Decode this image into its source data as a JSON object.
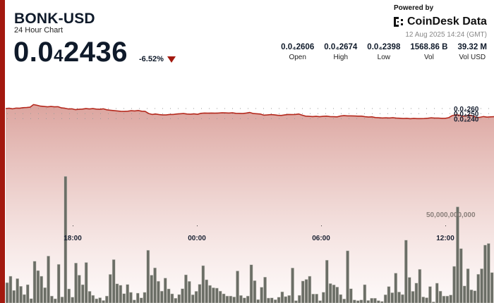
{
  "header": {
    "symbol": "BONK-USD",
    "subtitle": "24 Hour Chart",
    "price_prefix": "0.0",
    "price_sub": "4",
    "price_rest": "2436",
    "change": "-6.52%",
    "change_direction": "down",
    "colors": {
      "accent": "#a3190f",
      "volume": "#6b6e66",
      "line": "#b52a1e"
    }
  },
  "branding": {
    "powered_by": "Powered by",
    "name": "CoinDesk Data",
    "timestamp": "12 Aug 2025 14:24 (GMT)"
  },
  "stats": [
    {
      "value": "0.0₄2606",
      "label": "Open"
    },
    {
      "value": "0.0₄2674",
      "label": "High"
    },
    {
      "value": "0.0₄2398",
      "label": "Low"
    },
    {
      "value": "1568.86 B",
      "label": "Vol"
    },
    {
      "value": "39.32 M",
      "label": "Vol USD"
    }
  ],
  "chart_data": {
    "type": "line",
    "price_axis": {
      "ticks": [
        {
          "value": 2.4e-05,
          "label": "0.0₄240"
        },
        {
          "value": 2.5e-05,
          "label": "0.0₄250"
        },
        {
          "value": 2.6e-05,
          "label": "0.0₄260"
        }
      ],
      "grid": true
    },
    "volume_axis": {
      "ticks": [
        {
          "value": 50000000000,
          "label": "50,000,000,000"
        }
      ]
    },
    "x_ticks": [
      "18:00",
      "00:00",
      "06:00",
      "12:00"
    ],
    "price": [
      2.5986e-05,
      2.6056e-05,
      2.5944e-05,
      2.6083e-05,
      2.6056e-05,
      2.6167e-05,
      2.6194e-05,
      2.6264e-05,
      2.6778e-05,
      2.6639e-05,
      2.6472e-05,
      2.6403e-05,
      2.6333e-05,
      2.6403e-05,
      2.6333e-05,
      2.6361e-05,
      2.6125e-05,
      2.6056e-05,
      2.5917e-05,
      2.5944e-05,
      2.5778e-05,
      2.5847e-05,
      2.5889e-05,
      2.5986e-05,
      2.5917e-05,
      2.5986e-05,
      2.5889e-05,
      2.5847e-05,
      2.5944e-05,
      2.575e-05,
      2.5667e-05,
      2.5597e-05,
      2.5528e-05,
      2.5458e-05,
      2.5431e-05,
      2.5472e-05,
      2.5569e-05,
      2.5528e-05,
      2.5611e-05,
      2.5472e-05,
      2.5431e-05,
      2.5014e-05,
      2.4833e-05,
      2.4917e-05,
      2.4806e-05,
      2.4736e-05,
      2.4736e-05,
      2.4833e-05,
      2.4833e-05,
      2.4917e-05,
      2.4972e-05,
      2.5014e-05,
      2.4917e-05,
      2.4875e-05,
      2.4944e-05,
      2.4861e-05,
      2.5056e-05,
      2.5111e-05,
      2.5083e-05,
      2.5111e-05,
      2.5083e-05,
      2.5111e-05,
      2.5153e-05,
      2.5139e-05,
      2.5111e-05,
      2.5153e-05,
      2.5056e-05,
      2.5042e-05,
      2.5014e-05,
      2.5111e-05,
      2.5222e-05,
      2.5014e-05,
      2.4972e-05,
      2.4917e-05,
      2.4694e-05,
      2.4736e-05,
      2.4806e-05,
      2.4764e-05,
      2.4667e-05,
      2.4639e-05,
      2.4736e-05,
      2.4833e-05,
      2.4806e-05,
      2.4833e-05,
      2.4917e-05,
      2.4694e-05,
      2.45e-05,
      2.4458e-05,
      2.4417e-05,
      2.4458e-05,
      2.4389e-05,
      2.4458e-05,
      2.45e-05,
      2.4417e-05,
      2.4389e-05,
      2.4361e-05,
      2.4528e-05,
      2.4597e-05,
      2.4556e-05,
      2.4556e-05,
      2.4528e-05,
      2.45e-05,
      2.45e-05,
      2.4389e-05,
      2.4319e-05,
      2.4361e-05,
      2.4222e-05,
      2.4181e-05,
      2.4139e-05,
      2.4167e-05,
      2.4139e-05,
      2.4181e-05,
      2.4111e-05,
      2.4083e-05,
      2.4028e-05,
      2.4069e-05,
      2.4e-05,
      2.4042e-05,
      2.4014e-05,
      2.4014e-05,
      2.4028e-05,
      2.4083e-05,
      2.4167e-05,
      2.4111e-05,
      2.4125e-05,
      2.4069e-05,
      2.4069e-05,
      2.4181e-05,
      2.4597e-05,
      2.4764e-05,
      2.4694e-05,
      2.45e-05,
      2.4556e-05,
      2.4667e-05,
      2.4556e-05,
      2.4222e-05,
      2.4278e-05,
      2.4417e-05,
      2.4306e-05,
      2.4361e-05,
      2.4389e-05
    ],
    "volume_billions": [
      11.1,
      14.6,
      6.9,
      13.3,
      9.1,
      4.6,
      10.0,
      2.4,
      22.8,
      17.7,
      14.6,
      8.4,
      25.6,
      3.8,
      2.3,
      21.1,
      3.3,
      69.1,
      7.7,
      3.2,
      21.8,
      15.2,
      10.0,
      22.1,
      6.4,
      4.2,
      2.3,
      2.9,
      1.4,
      3.8,
      15.6,
      23.7,
      10.5,
      9.7,
      5.1,
      10.1,
      5.8,
      1.7,
      5.4,
      2.8,
      5.8,
      28.8,
      15.2,
      19.2,
      11.9,
      6.5,
      13.6,
      7.7,
      5.0,
      2.6,
      4.6,
      7.8,
      15.4,
      11.8,
      4.5,
      6.4,
      10.2,
      20.4,
      12.7,
      9.6,
      8.3,
      8.1,
      6.5,
      5.0,
      3.8,
      3.8,
      3.3,
      17.5,
      4.1,
      2.8,
      3.8,
      20.9,
      12.2,
      1.9,
      8.6,
      14.1,
      2.7,
      2.8,
      1.8,
      3.2,
      6.1,
      3.5,
      4.1,
      19.1,
      1.3,
      4.2,
      12.0,
      12.9,
      14.6,
      4.9,
      4.9,
      1.3,
      5.9,
      23.4,
      10.6,
      9.9,
      8.7,
      4.6,
      2.2,
      28.5,
      7.8,
      1.7,
      1.3,
      1.7,
      10.0,
      1.4,
      2.6,
      2.6,
      1.3,
      0.9,
      4.5,
      9.0,
      5.6,
      16.3,
      6.0,
      4.6,
      34.3,
      14.0,
      6.4,
      10.9,
      18.4,
      3.3,
      2.9,
      9.0,
      0.6,
      10.8,
      6.5,
      3.8,
      3.8,
      4.4,
      20.0,
      52.5,
      29.7,
      9.3,
      18.7,
      7.2,
      6.7,
      15.7,
      18.7,
      31.6,
      32.5,
      16.6
    ]
  }
}
